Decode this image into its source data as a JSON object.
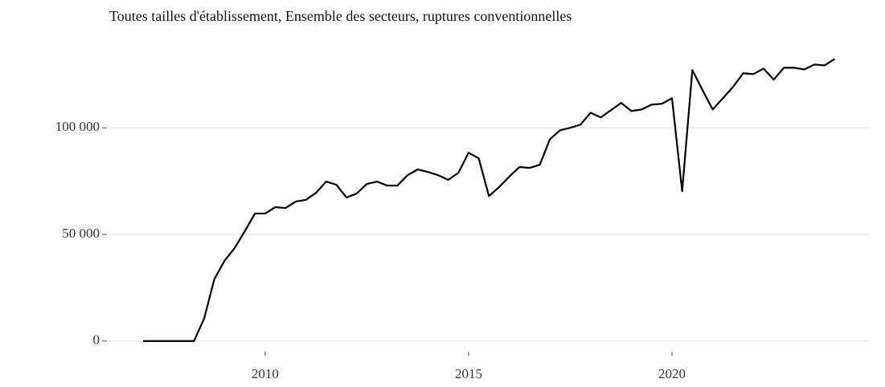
{
  "chart_data": {
    "type": "line",
    "title": "Toutes tailles d'établissement, Ensemble des secteurs, ruptures conventionnelles",
    "x": [
      2007,
      2007.25,
      2007.5,
      2007.75,
      2008,
      2008.25,
      2008.5,
      2008.75,
      2009,
      2009.25,
      2009.5,
      2009.75,
      2010,
      2010.25,
      2010.5,
      2010.75,
      2011,
      2011.25,
      2011.5,
      2011.75,
      2012,
      2012.25,
      2012.5,
      2012.75,
      2013,
      2013.25,
      2013.5,
      2013.75,
      2014,
      2014.25,
      2014.5,
      2014.75,
      2015,
      2015.25,
      2015.5,
      2015.75,
      2016,
      2016.25,
      2016.5,
      2016.75,
      2017,
      2017.25,
      2017.5,
      2017.75,
      2018,
      2018.25,
      2018.5,
      2018.75,
      2019,
      2019.25,
      2019.5,
      2019.75,
      2020,
      2020.25,
      2020.5,
      2020.75,
      2021,
      2021.25,
      2021.5,
      2021.75,
      2022,
      2022.25,
      2022.5,
      2022.75,
      2023,
      2023.25,
      2023.5,
      2023.75,
      2024
    ],
    "series": [
      {
        "color": "#000000",
        "values": [
          0,
          0,
          0,
          0,
          0,
          0,
          10500,
          29000,
          37600,
          43600,
          51500,
          59800,
          59800,
          62800,
          62400,
          65400,
          66200,
          69500,
          74800,
          73300,
          67300,
          69200,
          73700,
          74800,
          72900,
          72900,
          77800,
          80500,
          79300,
          77800,
          75600,
          78900,
          88300,
          85700,
          68000,
          72200,
          77100,
          81600,
          81200,
          82700,
          94700,
          98900,
          100000,
          101500,
          107100,
          104900,
          108300,
          111700,
          107900,
          108600,
          110900,
          111300,
          113900,
          70300,
          127100,
          117700,
          108600,
          113900,
          119200,
          125600,
          125200,
          127800,
          122600,
          128200,
          128200,
          127400,
          129700,
          129300,
          132300
        ]
      }
    ],
    "xlim": [
      2006.15,
      2024.86
    ],
    "xticks": [
      2010,
      2015,
      2020
    ],
    "ylim": [
      -5000,
      137000
    ],
    "yticks": [
      0,
      {
        "value": 50000,
        "label": "50 000"
      },
      {
        "value": 100000,
        "label": "100 000"
      }
    ],
    "grid": true
  }
}
